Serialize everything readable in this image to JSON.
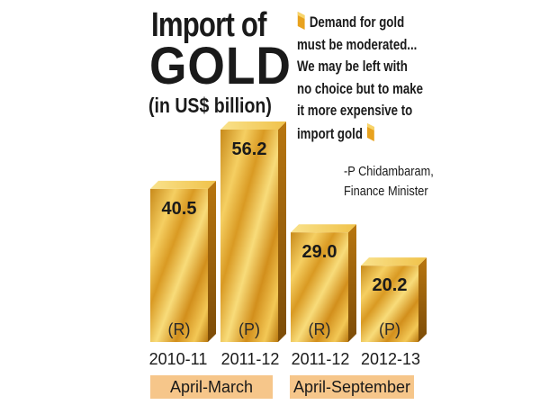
{
  "title": {
    "line1": "Import of",
    "line2": "GOLD",
    "line3": "(in US$ billion)"
  },
  "quote": {
    "lines": [
      "Demand for gold",
      "must be moderated...",
      "We may be left with",
      "no choice but to make",
      "it more expensive to",
      "import gold"
    ],
    "author": "-P Chidambaram,",
    "author_title": "Finance Minister"
  },
  "periods": [
    {
      "label": "April-March"
    },
    {
      "label": "April-September"
    }
  ],
  "colors": {
    "gold_light": "#f7d46a",
    "gold_mid": "#e7a521",
    "gold_dark": "#a86a10",
    "period_band": "#f6c68a"
  },
  "chart_data": {
    "type": "bar",
    "title": "Import of GOLD",
    "subtitle": "(in US$ billion)",
    "categories": [
      "2010-11",
      "2011-12",
      "2011-12",
      "2012-13"
    ],
    "values": [
      40.5,
      56.2,
      29.0,
      20.2
    ],
    "value_labels": [
      "40.5",
      "56.2",
      "29.0",
      "20.2"
    ],
    "status": [
      "(R)",
      "(P)",
      "(R)",
      "(P)"
    ],
    "groups": [
      "April-March",
      "April-March",
      "April-September",
      "April-September"
    ],
    "ylim": [
      0,
      56.2
    ],
    "grid": false,
    "legend": "none"
  }
}
